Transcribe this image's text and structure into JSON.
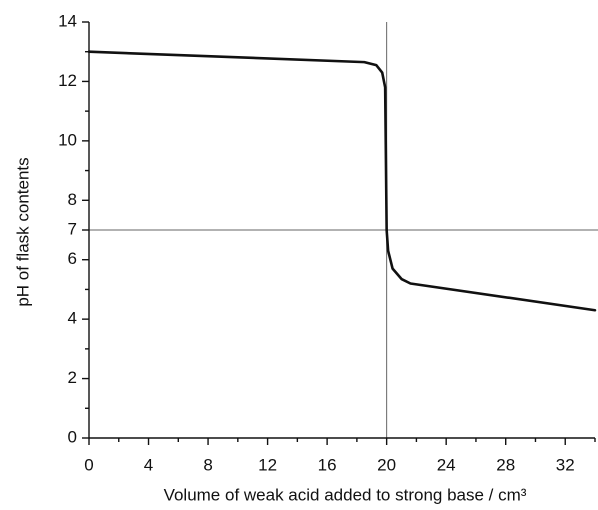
{
  "chart_data": {
    "type": "line",
    "x_label": "Volume of weak acid added to strong base / cm³",
    "y_label": "pH of flask contents",
    "x": [
      0,
      18.5,
      19.3,
      19.7,
      19.9,
      20,
      20.1,
      20.4,
      21,
      21.6,
      34
    ],
    "series": [
      {
        "color": "#111111",
        "values": [
          13,
          12.65,
          12.55,
          12.3,
          11.8,
          7,
          6.3,
          5.7,
          5.35,
          5.2,
          4.3
        ]
      }
    ],
    "xlim": [
      0,
      34
    ],
    "ylim": [
      0,
      14
    ],
    "xticks": [
      0,
      4,
      8,
      12,
      16,
      20,
      24,
      28,
      32
    ],
    "x_minor_ticks": [
      2,
      6,
      10,
      14,
      18,
      22,
      26,
      30,
      34
    ],
    "yticks": [
      0,
      2,
      4,
      6,
      7,
      8,
      10,
      12,
      14
    ],
    "y_minor_ticks": [
      1,
      3,
      5,
      9,
      11,
      13
    ],
    "vertical_line": 20,
    "horizontal_line": 7
  }
}
